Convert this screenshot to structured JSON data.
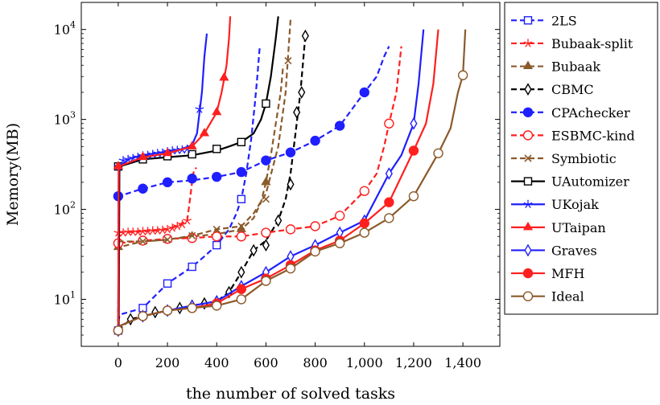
{
  "chart_data": {
    "type": "line",
    "xlabel": "the number of solved tasks",
    "ylabel": "Memory(MB)",
    "xlim": [
      -150,
      1550
    ],
    "ylim": [
      3.0,
      20000
    ],
    "yscale": "log",
    "grid": false,
    "legend_position": "right",
    "x_ticks": [
      0,
      200,
      400,
      600,
      800,
      1000,
      1200,
      1400
    ],
    "x_tick_labels": [
      "0",
      "200",
      "400",
      "600",
      "800",
      "1,000",
      "1,200",
      "1,400"
    ],
    "y_ticks": [
      10,
      100,
      1000,
      10000
    ],
    "y_tick_labels": [
      "10^1",
      "10^2",
      "10^3",
      "10^4"
    ],
    "series": [
      {
        "name": "2LS",
        "color": "#1f1fff",
        "dash": true,
        "marker": "square-open",
        "x": [
          0,
          2,
          5,
          10,
          100,
          200,
          300,
          350,
          400,
          450,
          480,
          500,
          520,
          540,
          555,
          565,
          575
        ],
        "y": [
          4.5,
          6,
          6.5,
          6.8,
          8,
          15,
          23,
          30,
          40,
          60,
          90,
          130,
          250,
          600,
          1500,
          3000,
          6500
        ],
        "markers_x": [
          0,
          100,
          200,
          300,
          400,
          500
        ],
        "markers_y": [
          4.5,
          8,
          15,
          23,
          40,
          130
        ]
      },
      {
        "name": "Bubaak-split",
        "color": "#ff1f1f",
        "dash": true,
        "marker": "star",
        "x": [
          0,
          2,
          10,
          50,
          100,
          150,
          200,
          250,
          280,
          290,
          300,
          305,
          310,
          318
        ],
        "y": [
          4.5,
          55,
          56,
          56,
          57,
          58,
          60,
          68,
          75,
          120,
          200,
          250,
          280,
          290
        ],
        "markers_x": [
          0,
          20,
          40,
          60,
          80,
          100,
          120,
          140,
          160,
          180,
          200,
          220,
          240,
          260,
          280
        ],
        "markers_y": [
          55,
          55,
          56,
          56,
          56,
          57,
          57,
          58,
          58,
          59,
          60,
          62,
          65,
          68,
          75
        ]
      },
      {
        "name": "Bubaak",
        "color": "#8b5a2b",
        "dash": true,
        "marker": "triangle",
        "x": [
          0,
          2,
          100,
          200,
          300,
          400,
          500,
          550,
          580,
          600,
          620,
          640,
          660,
          670
        ],
        "y": [
          4.5,
          38,
          44,
          46,
          50,
          53,
          60,
          80,
          120,
          200,
          400,
          900,
          2000,
          4000
        ],
        "markers_x": [
          0,
          100,
          200,
          300,
          400,
          500,
          600
        ],
        "markers_y": [
          38,
          44,
          46,
          50,
          53,
          60,
          200
        ]
      },
      {
        "name": "CBMC",
        "color": "#000000",
        "dash": true,
        "marker": "diamond-open",
        "x": [
          0,
          50,
          100,
          200,
          300,
          400,
          450,
          500,
          550,
          600,
          650,
          680,
          700,
          720,
          740,
          760
        ],
        "y": [
          4.5,
          6,
          6.5,
          7.5,
          8.5,
          9.5,
          12,
          20,
          35,
          45,
          75,
          130,
          250,
          700,
          2000,
          8500
        ],
        "markers_x": [
          0,
          50,
          100,
          150,
          200,
          250,
          300,
          350,
          400,
          450,
          500,
          550,
          600,
          650,
          700,
          725,
          745,
          760
        ],
        "markers_y": [
          4.5,
          6,
          6.5,
          7.2,
          7.5,
          8,
          8.5,
          9,
          9.5,
          12,
          20,
          35,
          40,
          75,
          190,
          1200,
          2000,
          8500
        ]
      },
      {
        "name": "CPAchecker",
        "color": "#1f1fff",
        "dash": true,
        "marker": "circle",
        "x": [
          0,
          2,
          100,
          200,
          300,
          400,
          500,
          600,
          700,
          800,
          900,
          1000,
          1050,
          1080,
          1100
        ],
        "y": [
          4.5,
          140,
          170,
          200,
          210,
          230,
          260,
          350,
          430,
          580,
          850,
          2000,
          3000,
          5000,
          6500
        ],
        "markers_x": [
          0,
          100,
          200,
          300,
          400,
          500,
          600,
          700,
          800,
          900,
          1000
        ],
        "markers_y": [
          140,
          170,
          200,
          220,
          230,
          260,
          350,
          430,
          580,
          850,
          2000
        ]
      },
      {
        "name": "ESBMC-kind",
        "color": "#ff1f1f",
        "dash": true,
        "marker": "circle-open",
        "x": [
          0,
          2,
          100,
          200,
          300,
          400,
          500,
          600,
          700,
          800,
          900,
          1000,
          1050,
          1080,
          1100,
          1130,
          1150
        ],
        "y": [
          4.5,
          42,
          45,
          47,
          48,
          50,
          50,
          55,
          60,
          65,
          85,
          160,
          250,
          500,
          900,
          2000,
          6500
        ],
        "markers_x": [
          0,
          100,
          200,
          300,
          400,
          500,
          600,
          700,
          800,
          900,
          1000,
          1100
        ],
        "markers_y": [
          42,
          45,
          47,
          48,
          50,
          50,
          55,
          60,
          65,
          85,
          160,
          900
        ]
      },
      {
        "name": "Symbiotic",
        "color": "#8b5a2b",
        "dash": true,
        "marker": "cross",
        "x": [
          0,
          2,
          100,
          200,
          300,
          400,
          500,
          550,
          600,
          650,
          680,
          700
        ],
        "y": [
          4.5,
          44,
          44,
          46,
          51,
          60,
          65,
          90,
          150,
          500,
          2000,
          13000
        ],
        "markers_x": [
          0,
          100,
          200,
          300,
          400,
          500,
          600,
          690
        ],
        "markers_y": [
          4.5,
          44,
          46,
          51,
          60,
          65,
          130,
          4500
        ]
      },
      {
        "name": "UAutomizer",
        "color": "#000000",
        "dash": false,
        "marker": "square-open",
        "x": [
          0,
          2,
          5,
          100,
          200,
          300,
          400,
          450,
          500,
          550,
          580,
          600,
          620,
          640,
          650
        ],
        "y": [
          4.5,
          4.5,
          300,
          360,
          380,
          400,
          450,
          500,
          560,
          700,
          1000,
          1500,
          3000,
          8000,
          14000
        ],
        "markers_x": [
          0,
          100,
          200,
          300,
          400,
          500,
          600
        ],
        "markers_y": [
          300,
          360,
          390,
          410,
          470,
          560,
          1500
        ]
      },
      {
        "name": "UKojak",
        "color": "#1f1fff",
        "dash": false,
        "marker": "star",
        "x": [
          0,
          2,
          50,
          100,
          150,
          200,
          250,
          300,
          320,
          340,
          350,
          360
        ],
        "y": [
          4.5,
          300,
          370,
          400,
          420,
          440,
          460,
          520,
          700,
          2000,
          5000,
          9000
        ],
        "markers_x": [
          0,
          20,
          40,
          60,
          80,
          100,
          120,
          140,
          160,
          180,
          200,
          220,
          240,
          260,
          280,
          330
        ],
        "markers_y": [
          300,
          350,
          360,
          370,
          380,
          395,
          400,
          410,
          420,
          425,
          440,
          450,
          455,
          460,
          470,
          1300
        ]
      },
      {
        "name": "UTaipan",
        "color": "#ff1f1f",
        "dash": false,
        "marker": "triangle",
        "x": [
          0,
          2,
          100,
          200,
          300,
          350,
          400,
          420,
          430,
          440,
          450,
          455
        ],
        "y": [
          4.5,
          300,
          380,
          420,
          500,
          700,
          1200,
          2000,
          2800,
          4000,
          8000,
          14000
        ],
        "markers_x": [
          0,
          100,
          200,
          300,
          350,
          400,
          430
        ],
        "markers_y": [
          300,
          380,
          420,
          500,
          700,
          1200,
          2900
        ]
      },
      {
        "name": "Graves",
        "color": "#1f1fff",
        "dash": false,
        "marker": "diamond-open",
        "x": [
          0,
          2,
          100,
          200,
          300,
          400,
          500,
          600,
          700,
          800,
          900,
          1000,
          1100,
          1150,
          1200,
          1220,
          1240
        ],
        "y": [
          4.5,
          5,
          6.5,
          7.5,
          8.5,
          9.5,
          14,
          20,
          30,
          40,
          55,
          75,
          250,
          400,
          900,
          2500,
          10000
        ],
        "markers_x": [
          0,
          100,
          200,
          300,
          400,
          500,
          600,
          700,
          800,
          900,
          1000,
          1100,
          1200
        ],
        "markers_y": [
          4.5,
          6.5,
          7.5,
          8.5,
          9.5,
          14,
          20,
          30,
          40,
          55,
          75,
          250,
          900
        ]
      },
      {
        "name": "MFH",
        "color": "#ff1f1f",
        "dash": false,
        "marker": "circle",
        "x": [
          0,
          2,
          100,
          200,
          300,
          400,
          500,
          600,
          700,
          800,
          900,
          1000,
          1100,
          1200,
          1250,
          1280,
          1300
        ],
        "y": [
          4.5,
          5,
          6.5,
          7.5,
          8,
          9,
          13,
          17,
          24,
          35,
          45,
          70,
          120,
          450,
          900,
          2500,
          10000
        ],
        "markers_x": [
          0,
          100,
          200,
          300,
          400,
          500,
          600,
          700,
          800,
          900,
          1000,
          1100,
          1200
        ],
        "markers_y": [
          4.5,
          6.5,
          7.5,
          8,
          9,
          13,
          17,
          24,
          35,
          45,
          70,
          120,
          450
        ]
      },
      {
        "name": "Ideal",
        "color": "#8b5a2b",
        "dash": false,
        "marker": "circle-open",
        "x": [
          0,
          2,
          100,
          200,
          300,
          400,
          500,
          600,
          700,
          800,
          900,
          1000,
          1100,
          1200,
          1300,
          1350,
          1380,
          1400,
          1410
        ],
        "y": [
          4.5,
          5,
          6.5,
          7.5,
          8,
          8.5,
          10,
          16,
          22,
          34,
          42,
          55,
          80,
          140,
          420,
          800,
          2000,
          3100,
          10000
        ],
        "markers_x": [
          0,
          100,
          200,
          300,
          400,
          500,
          600,
          700,
          800,
          900,
          1000,
          1100,
          1200,
          1300,
          1400
        ],
        "markers_y": [
          4.5,
          6.5,
          7.5,
          8,
          8.5,
          10,
          16,
          22,
          34,
          42,
          55,
          80,
          140,
          420,
          3100
        ]
      }
    ]
  }
}
